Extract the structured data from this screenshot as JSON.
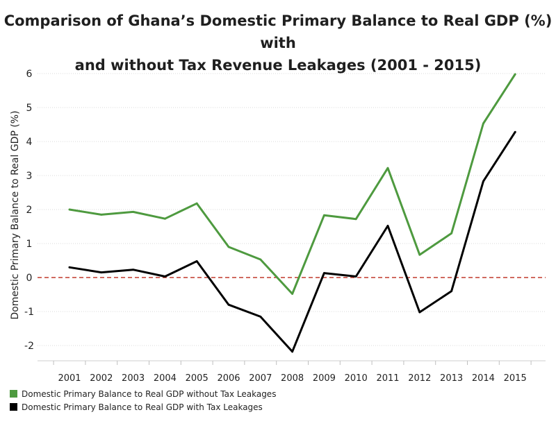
{
  "chart_data": {
    "type": "line",
    "title_lines": [
      "Comparison of Ghana’s Domestic Primary Balance to Real GDP (%) with",
      "and without Tax Revenue Leakages (2001 - 2015)"
    ],
    "xlabel": "",
    "ylabel": "Domestic Primary Balance to Real GDP (%)",
    "categories": [
      "2001",
      "2002",
      "2003",
      "2004",
      "2005",
      "2006",
      "2007",
      "2008",
      "2009",
      "2010",
      "2011",
      "2012",
      "2013",
      "2014",
      "2015"
    ],
    "ylim": [
      -2.5,
      6.2
    ],
    "yticks": [
      -2,
      -1,
      0,
      1,
      2,
      3,
      4,
      5,
      6
    ],
    "reference_line": {
      "y": 0,
      "color": "#c0392b",
      "style": "dashed"
    },
    "grid": "horizontal dotted",
    "legend_position": "bottom-left",
    "series": [
      {
        "name": "Domestic Primary Balance to Real GDP without Tax Leakages",
        "color": "#4e9a3f",
        "values": [
          2.0,
          1.85,
          1.93,
          1.73,
          2.18,
          0.9,
          0.53,
          -0.48,
          1.83,
          1.72,
          3.22,
          0.67,
          1.3,
          4.53,
          5.98
        ]
      },
      {
        "name": "Domestic Primary Balance to Real GDP with Tax Leakages",
        "color": "#000000",
        "values": [
          0.3,
          0.15,
          0.23,
          0.03,
          0.48,
          -0.8,
          -1.15,
          -2.18,
          0.13,
          0.03,
          1.52,
          -1.02,
          -0.4,
          2.83,
          4.28
        ]
      }
    ]
  }
}
